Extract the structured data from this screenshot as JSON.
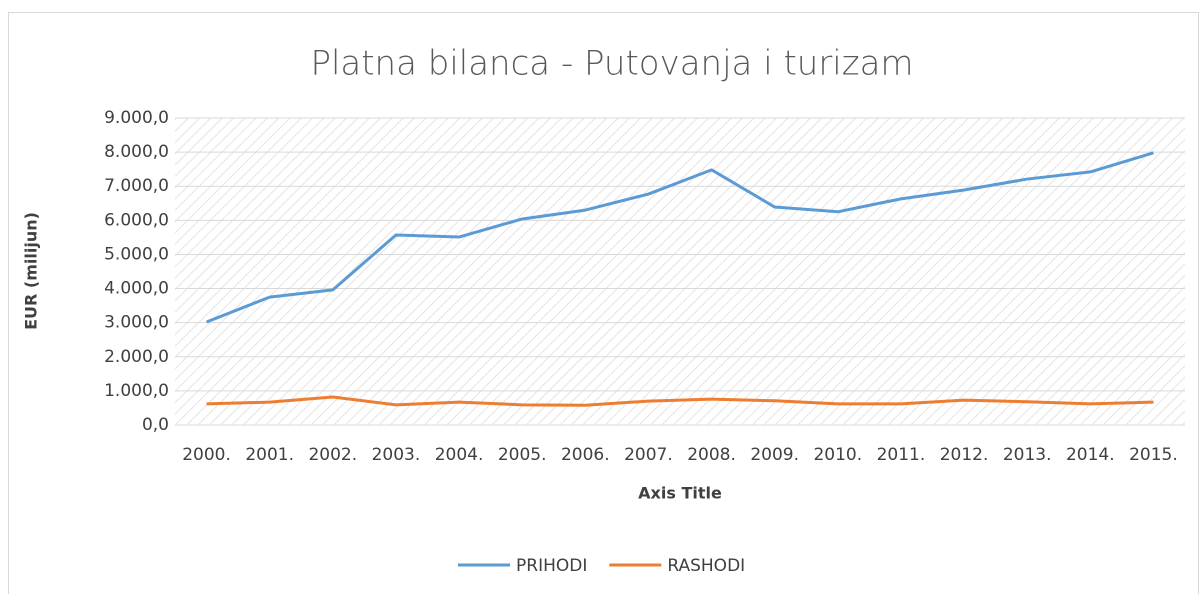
{
  "chart_data": {
    "type": "line",
    "title": "Platna bilanca - Putovanja i turizam",
    "x_label": "Axis Title",
    "y_label": "EUR (milijun)",
    "categories": [
      "2000.",
      "2001.",
      "2002.",
      "2003.",
      "2004.",
      "2005.",
      "2006.",
      "2007.",
      "2008.",
      "2009.",
      "2010.",
      "2011.",
      "2012.",
      "2013.",
      "2014.",
      "2015."
    ],
    "series": [
      {
        "name": "PRIHODI",
        "color": "#5b9bd5",
        "values": [
          3020,
          3750,
          3960,
          5570,
          5510,
          6040,
          6300,
          6770,
          7480,
          6390,
          6250,
          6630,
          6890,
          7210,
          7420,
          7980
        ]
      },
      {
        "name": "RASHODI",
        "color": "#ed7d31",
        "values": [
          620,
          670,
          820,
          590,
          670,
          590,
          580,
          700,
          760,
          710,
          620,
          620,
          730,
          680,
          620,
          670
        ]
      }
    ],
    "ylim": [
      0,
      9000
    ],
    "yticks": [
      {
        "value": 0,
        "label": "0,0"
      },
      {
        "value": 1000,
        "label": "1.000,0"
      },
      {
        "value": 2000,
        "label": "2.000,0"
      },
      {
        "value": 3000,
        "label": "3.000,0"
      },
      {
        "value": 4000,
        "label": "4.000,0"
      },
      {
        "value": 5000,
        "label": "5.000,0"
      },
      {
        "value": 6000,
        "label": "6.000,0"
      },
      {
        "value": 7000,
        "label": "7.000,0"
      },
      {
        "value": 8000,
        "label": "8.000,0"
      },
      {
        "value": 9000,
        "label": "9.000,0"
      }
    ],
    "grid": true,
    "legend": "bottom"
  }
}
